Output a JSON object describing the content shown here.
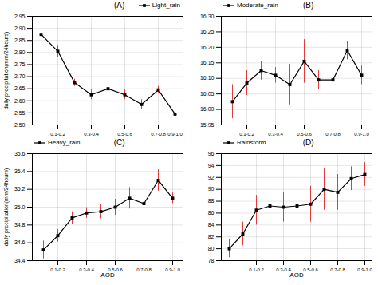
{
  "chart_data": [
    {
      "type": "line",
      "categories": [
        null,
        "0.1-0.2",
        null,
        "0.3-0.4",
        null,
        "0.5-0.6",
        null,
        "0.7-0.8",
        "0.9-1.0"
      ],
      "series": [
        {
          "name": "Light_rain",
          "color": "#000000",
          "marker": "square",
          "values": [
            2.875,
            2.805,
            2.675,
            2.625,
            2.65,
            2.625,
            2.585,
            2.645,
            2.545
          ],
          "errors": [
            0.035,
            0.025,
            0.015,
            0.02,
            0.02,
            0.02,
            0.02,
            0.015,
            0.025
          ]
        }
      ],
      "ylabel": "daily precipitation(mm/24hours)",
      "ylim": [
        2.5,
        2.95
      ],
      "yticks": [
        {
          "value": 2.5,
          "label": "2.50"
        },
        2.55,
        {
          "value": 2.6,
          "label": "2.60"
        },
        2.65,
        {
          "value": 2.7,
          "label": "2.70"
        },
        2.75,
        {
          "value": 2.8,
          "label": "2.80"
        },
        2.85,
        {
          "value": 2.9,
          "label": "2.90"
        },
        2.95
      ],
      "grid": true,
      "legend": "upper right",
      "annotations": [
        "(A)"
      ]
    },
    {
      "type": "line",
      "categories": [
        null,
        "0.1-0.2",
        null,
        "0.3-0.4",
        null,
        "0.5-0.6",
        null,
        "0.7-0.8",
        null,
        "0.9-1.0"
      ],
      "series": [
        {
          "name": "Moderate_rain",
          "color": "#000000",
          "marker": "square",
          "values": [
            16.025,
            16.085,
            16.125,
            16.11,
            16.08,
            16.155,
            16.095,
            16.095,
            16.19,
            16.11
          ],
          "errors": [
            0.055,
            0.04,
            0.03,
            0.025,
            0.065,
            0.07,
            0.03,
            0.085,
            0.03,
            0.03
          ]
        }
      ],
      "ylim": [
        15.95,
        16.3
      ],
      "yticks": [
        15.95,
        {
          "value": 16.0,
          "label": "16.00"
        },
        16.05,
        {
          "value": 16.1,
          "label": "16.10"
        },
        16.15,
        {
          "value": 16.2,
          "label": "16.20"
        },
        16.25,
        {
          "value": 16.3,
          "label": "16.30"
        }
      ],
      "grid": true,
      "legend": "upper left",
      "annotations": [
        "(B)"
      ]
    },
    {
      "type": "line",
      "categories": [
        null,
        "0.1-0.2",
        null,
        "0.3-0.4",
        null,
        "0.5-0.6",
        null,
        "0.7-0.8",
        null,
        "0.9-1.0"
      ],
      "series": [
        {
          "name": "Heavy_rain",
          "color": "#000000",
          "marker": "square",
          "values": [
            34.52,
            34.68,
            34.88,
            34.935,
            34.95,
            35.0,
            35.1,
            35.04,
            35.3,
            35.1
          ],
          "errors": [
            0.1,
            0.07,
            0.07,
            0.06,
            0.08,
            0.09,
            0.12,
            0.14,
            0.12,
            0.06
          ]
        }
      ],
      "xlabel": "AOD",
      "ylabel": "daily precipitation(mm/24hours)",
      "ylim": [
        34.4,
        35.6
      ],
      "yticks": [
        34.4,
        34.6,
        34.8,
        {
          "value": 35.0,
          "label": "35.0"
        },
        35.2,
        35.4,
        35.6
      ],
      "grid": true,
      "legend": "upper left",
      "annotations": [
        "(C)"
      ]
    },
    {
      "type": "line",
      "categories": [
        null,
        null,
        "0.1-0.2",
        null,
        "0.3-0.4",
        null,
        "0.5-0.6",
        null,
        "0.7-0.8",
        null,
        "0.9-1.0"
      ],
      "series": [
        {
          "name": "Rainstorm",
          "color": "#000000",
          "marker": "square",
          "values": [
            80.0,
            82.5,
            86.5,
            87.2,
            87.0,
            87.2,
            87.5,
            90.0,
            89.5,
            91.8,
            92.5
          ],
          "errors": [
            1.5,
            2.0,
            2.5,
            2.5,
            2.5,
            3.5,
            3.0,
            3.5,
            3.0,
            2.0,
            2.0
          ]
        }
      ],
      "xlabel": "AOD",
      "ylim": [
        78,
        96
      ],
      "yticks": [
        78,
        80,
        82,
        84,
        86,
        88,
        90,
        92,
        94,
        96
      ],
      "grid": true,
      "legend": "upper left",
      "annotations": [
        "(D)"
      ]
    }
  ]
}
